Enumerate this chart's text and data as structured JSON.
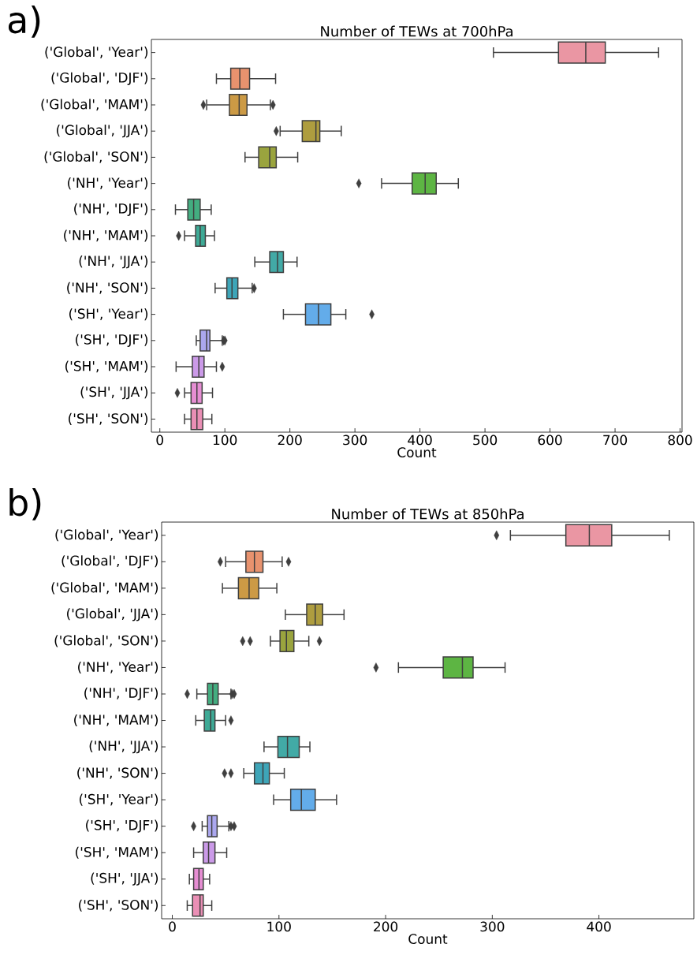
{
  "chart_data": [
    {
      "type": "box",
      "orientation": "horizontal",
      "title": "Number of TEWs at 700hPa",
      "xlabel": "Count",
      "annotations": [
        "a)"
      ],
      "categories": [
        "('Global', 'Year')",
        "('Global', 'DJF')",
        "('Global', 'MAM')",
        "('Global', 'JJA')",
        "('Global', 'SON')",
        "('NH', 'Year')",
        "('NH', 'DJF')",
        "('NH', 'MAM')",
        "('NH', 'JJA')",
        "('NH', 'SON')",
        "('SH', 'Year')",
        "('SH', 'DJF')",
        "('SH', 'MAM')",
        "('SH', 'JJA')",
        "('SH', 'SON')"
      ],
      "colors": [
        "#ea96a3",
        "#e8926e",
        "#cc9a45",
        "#ae9d3f",
        "#9aa43e",
        "#5db543",
        "#43ad80",
        "#3eaa96",
        "#42aaa6",
        "#3ea5b8",
        "#63acea",
        "#aba7ee",
        "#cb9ae8",
        "#e68ed3",
        "#ea8fb5"
      ],
      "xlim": [
        -13,
        803
      ],
      "xticks": [
        0,
        100,
        200,
        300,
        400,
        500,
        600,
        700,
        800
      ],
      "boxes": [
        {
          "low": 513,
          "q1": 613,
          "median": 655,
          "q3": 685,
          "high": 767
        },
        {
          "low": 87,
          "q1": 109,
          "median": 123,
          "q3": 138,
          "high": 178
        },
        {
          "low": 72,
          "q1": 107,
          "median": 122,
          "q3": 134,
          "high": 170,
          "outliers": [
            67,
            174
          ]
        },
        {
          "low": 185,
          "q1": 219,
          "median": 240,
          "q3": 246,
          "high": 279,
          "outliers": [
            179
          ]
        },
        {
          "low": 131,
          "q1": 152,
          "median": 169,
          "q3": 179,
          "high": 212
        },
        {
          "low": 341,
          "q1": 388,
          "median": 408,
          "q3": 425,
          "high": 459,
          "outliers": [
            306
          ]
        },
        {
          "low": 24,
          "q1": 43,
          "median": 52,
          "q3": 62,
          "high": 79
        },
        {
          "low": 38,
          "q1": 55,
          "median": 62,
          "q3": 70,
          "high": 84,
          "outliers": [
            29
          ]
        },
        {
          "low": 146,
          "q1": 169,
          "median": 181,
          "q3": 190,
          "high": 211
        },
        {
          "low": 85,
          "q1": 103,
          "median": 111,
          "q3": 120,
          "high": 142,
          "outliers": [
            145
          ]
        },
        {
          "low": 190,
          "q1": 224,
          "median": 244,
          "q3": 263,
          "high": 286,
          "outliers": [
            326
          ]
        },
        {
          "low": 56,
          "q1": 62,
          "median": 72,
          "q3": 77,
          "high": 96,
          "outliers": [
            98,
            100
          ]
        },
        {
          "low": 25,
          "q1": 50,
          "median": 60,
          "q3": 68,
          "high": 87,
          "outliers": [
            96
          ]
        },
        {
          "low": 38,
          "q1": 48,
          "median": 57,
          "q3": 65,
          "high": 81,
          "outliers": [
            27
          ]
        },
        {
          "low": 38,
          "q1": 48,
          "median": 57,
          "q3": 66,
          "high": 80
        }
      ]
    },
    {
      "type": "box",
      "orientation": "horizontal",
      "title": "Number of TEWs at 850hPa",
      "xlabel": "Count",
      "annotations": [
        "b)"
      ],
      "categories": [
        "('Global', 'Year')",
        "('Global', 'DJF')",
        "('Global', 'MAM')",
        "('Global', 'JJA')",
        "('Global', 'SON')",
        "('NH', 'Year')",
        "('NH', 'DJF')",
        "('NH', 'MAM')",
        "('NH', 'JJA')",
        "('NH', 'SON')",
        "('SH', 'Year')",
        "('SH', 'DJF')",
        "('SH', 'MAM')",
        "('SH', 'JJA')",
        "('SH', 'SON')"
      ],
      "colors": [
        "#ea96a3",
        "#e8926e",
        "#cc9a45",
        "#ae9d3f",
        "#9aa43e",
        "#5db543",
        "#43ad80",
        "#3eaa96",
        "#42aaa6",
        "#3ea5b8",
        "#63acea",
        "#aba7ee",
        "#cb9ae8",
        "#e68ed3",
        "#ea8fb5"
      ],
      "xlim": [
        -10,
        489
      ],
      "xticks": [
        0,
        100,
        200,
        300,
        400
      ],
      "boxes": [
        {
          "low": 317,
          "q1": 369,
          "median": 391,
          "q3": 412,
          "high": 466,
          "outliers": [
            304
          ]
        },
        {
          "low": 50,
          "q1": 69,
          "median": 77,
          "q3": 85,
          "high": 103,
          "outliers": [
            45,
            109
          ]
        },
        {
          "low": 47,
          "q1": 62,
          "median": 72,
          "q3": 81,
          "high": 98
        },
        {
          "low": 106,
          "q1": 126,
          "median": 134,
          "q3": 141,
          "high": 161
        },
        {
          "low": 92,
          "q1": 101,
          "median": 107,
          "q3": 114,
          "high": 128,
          "outliers": [
            66,
            73,
            138
          ]
        },
        {
          "low": 212,
          "q1": 254,
          "median": 272,
          "q3": 282,
          "high": 312,
          "outliers": [
            191
          ]
        },
        {
          "low": 23,
          "q1": 33,
          "median": 38,
          "q3": 43,
          "high": 55,
          "outliers": [
            14,
            56,
            58
          ]
        },
        {
          "low": 22,
          "q1": 30,
          "median": 36,
          "q3": 40,
          "high": 50,
          "outliers": [
            55
          ]
        },
        {
          "low": 86,
          "q1": 99,
          "median": 108,
          "q3": 119,
          "high": 129
        },
        {
          "low": 67,
          "q1": 77,
          "median": 85,
          "q3": 91,
          "high": 105,
          "outliers": [
            49,
            55
          ]
        },
        {
          "low": 95,
          "q1": 111,
          "median": 121,
          "q3": 134,
          "high": 154
        },
        {
          "low": 28,
          "q1": 33,
          "median": 37,
          "q3": 42,
          "high": 53,
          "outliers": [
            20,
            55,
            58
          ]
        },
        {
          "low": 20,
          "q1": 29,
          "median": 34,
          "q3": 40,
          "high": 51
        },
        {
          "low": 16,
          "q1": 20,
          "median": 25,
          "q3": 29,
          "high": 35
        },
        {
          "low": 14,
          "q1": 19,
          "median": 26,
          "q3": 29,
          "high": 37
        }
      ]
    }
  ]
}
